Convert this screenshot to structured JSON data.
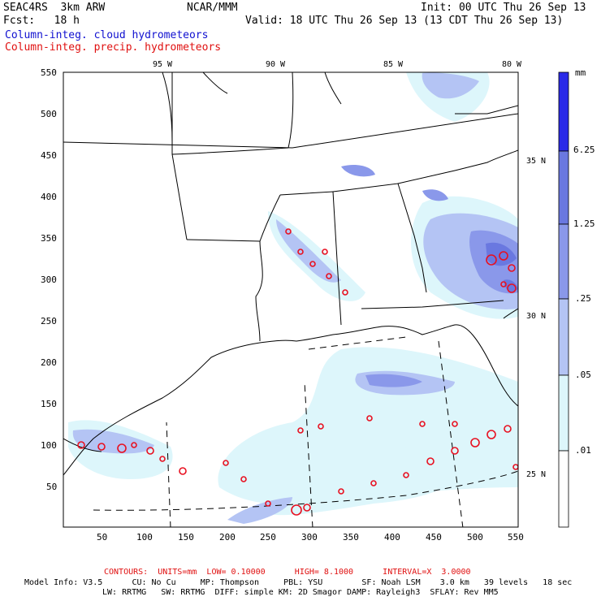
{
  "header": {
    "project": "SEAC4RS  3km ARW",
    "center": "NCAR/MMM",
    "init": "Init: 00 UTC Thu 26 Sep 13",
    "fcst": "Fcst:   18 h",
    "valid": "Valid: 18 UTC Thu 26 Sep 13 (13 CDT Thu 26 Sep 13)",
    "field_cloud": "Column-integ. cloud hydrometeors",
    "field_precip": "Column-integ. precip. hydrometeors"
  },
  "colors": {
    "cloud_label": "#1010d0",
    "precip_label": "#e01010",
    "contour": "#e81020",
    "shade_0": "#ddf6fb",
    "shade_1": "#b4c4f4",
    "shade_2": "#8a98ea",
    "shade_3": "#6a78e0",
    "shade_4": "#2a2ae8"
  },
  "colorbar": {
    "unit": "mm",
    "labels": [
      ".01",
      ".05",
      ".25",
      "1.25",
      "6.25"
    ]
  },
  "axes": {
    "x_ticks": [
      "50",
      "100",
      "150",
      "200",
      "250",
      "300",
      "350",
      "400",
      "450",
      "500",
      "550"
    ],
    "y_ticks": [
      "550",
      "500",
      "450",
      "400",
      "350",
      "300",
      "250",
      "200",
      "150",
      "100",
      "50"
    ],
    "lon_labels": [
      "95 W",
      "90 W",
      "85 W",
      "80 W"
    ],
    "lat_labels": [
      "35 N",
      "30 N",
      "25 N"
    ]
  },
  "footer": {
    "contours": "CONTOURS:  UNITS=mm  LOW= 0.10000      HIGH= 8.1000      INTERVAL=X  3.0000",
    "model_line1": "Model Info: V3.5      CU: No Cu     MP: Thompson     PBL: YSU        SF: Noah LSM    3.0 km   39 levels   18 sec",
    "model_line2": "LW: RRTMG   SW: RRTMG  DIFF: simple KM: 2D Smagor DAMP: Rayleigh3  SFLAY: Rev MM5"
  }
}
